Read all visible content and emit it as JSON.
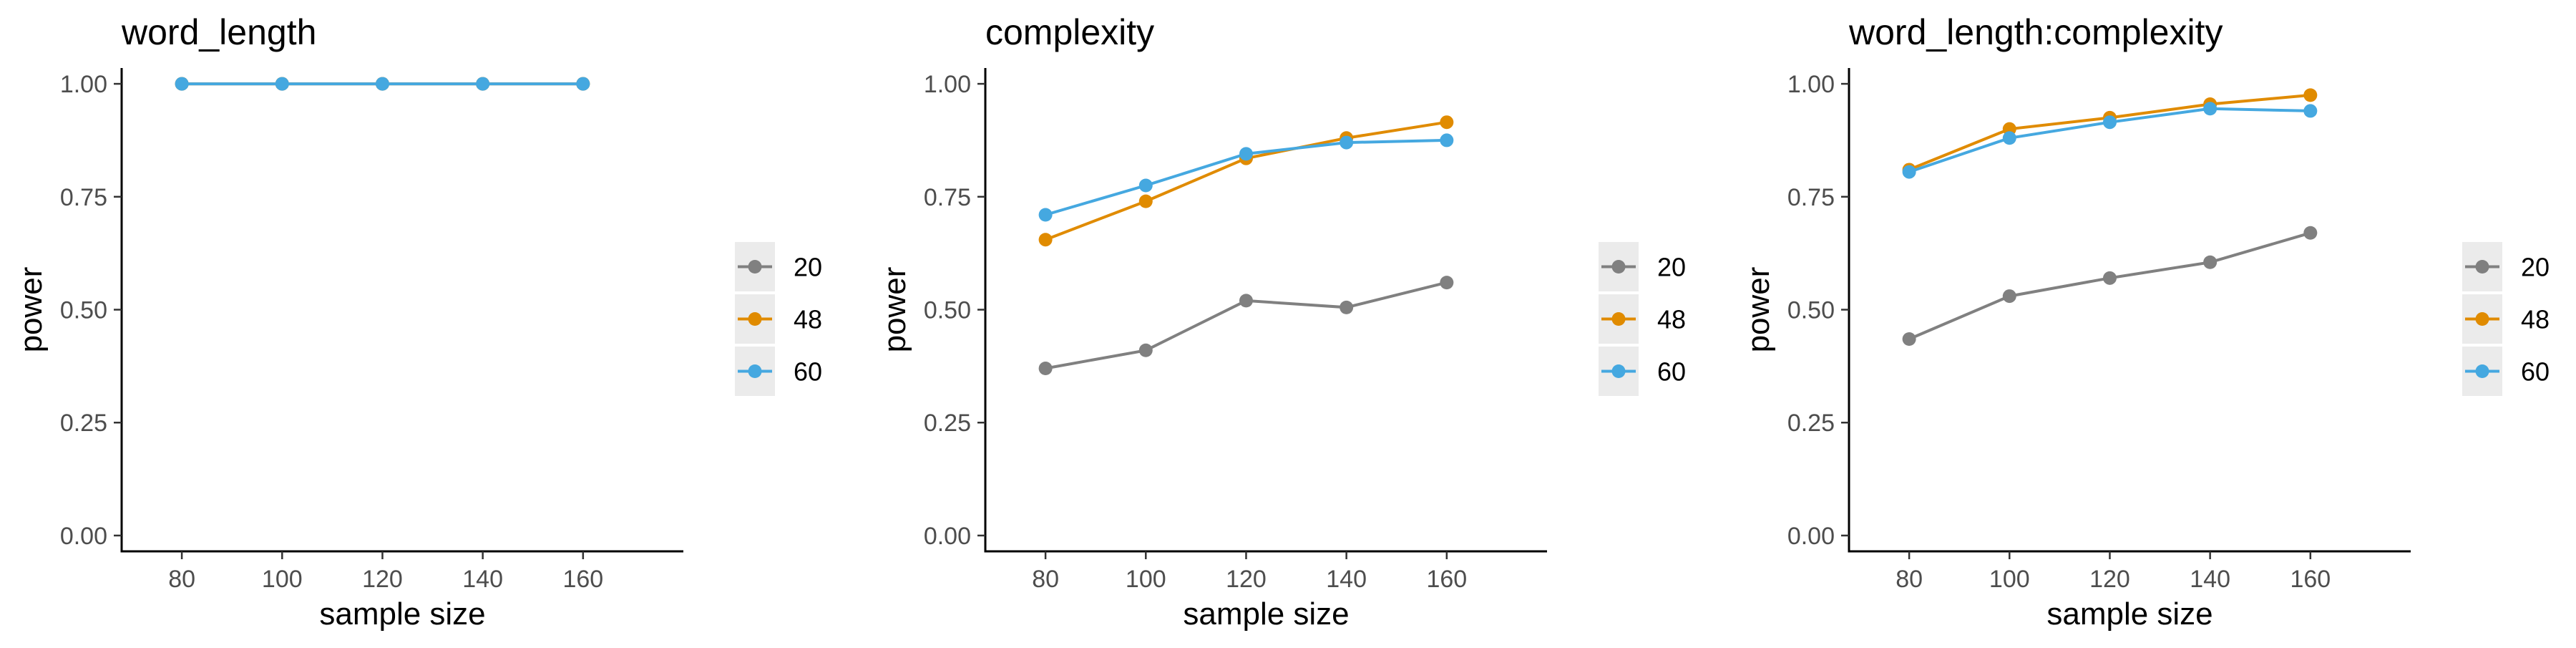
{
  "chart_data": [
    {
      "type": "line",
      "title": "word_length",
      "xlabel": "sample size",
      "ylabel": "power",
      "x": [
        80,
        100,
        120,
        140,
        160
      ],
      "xlim": [
        68,
        180
      ],
      "ylim": [
        -0.035,
        1.035
      ],
      "xticks": [
        80,
        100,
        120,
        140,
        160
      ],
      "yticks": [
        "0.00",
        "0.25",
        "0.50",
        "0.75",
        "1.00"
      ],
      "grid": false,
      "legend": {
        "position": "right",
        "entries": [
          "20",
          "48",
          "60"
        ]
      },
      "series": [
        {
          "name": "20",
          "color": "#808080",
          "values": [
            1.0,
            1.0,
            1.0,
            1.0,
            1.0
          ]
        },
        {
          "name": "48",
          "color": "#e08b00",
          "values": [
            1.0,
            1.0,
            1.0,
            1.0,
            1.0
          ]
        },
        {
          "name": "60",
          "color": "#45a8e0",
          "values": [
            1.0,
            1.0,
            1.0,
            1.0,
            1.0
          ]
        }
      ]
    },
    {
      "type": "line",
      "title": "complexity",
      "xlabel": "sample size",
      "ylabel": "power",
      "x": [
        80,
        100,
        120,
        140,
        160
      ],
      "xlim": [
        68,
        180
      ],
      "ylim": [
        -0.035,
        1.035
      ],
      "xticks": [
        80,
        100,
        120,
        140,
        160
      ],
      "yticks": [
        "0.00",
        "0.25",
        "0.50",
        "0.75",
        "1.00"
      ],
      "grid": false,
      "legend": {
        "position": "right",
        "entries": [
          "20",
          "48",
          "60"
        ]
      },
      "series": [
        {
          "name": "20",
          "color": "#808080",
          "values": [
            0.37,
            0.41,
            0.52,
            0.505,
            0.56
          ]
        },
        {
          "name": "48",
          "color": "#e08b00",
          "values": [
            0.655,
            0.74,
            0.835,
            0.88,
            0.915
          ]
        },
        {
          "name": "60",
          "color": "#45a8e0",
          "values": [
            0.71,
            0.775,
            0.845,
            0.87,
            0.875
          ]
        }
      ]
    },
    {
      "type": "line",
      "title": "word_length:complexity",
      "xlabel": "sample size",
      "ylabel": "power",
      "x": [
        80,
        100,
        120,
        140,
        160
      ],
      "xlim": [
        68,
        180
      ],
      "ylim": [
        -0.035,
        1.035
      ],
      "xticks": [
        80,
        100,
        120,
        140,
        160
      ],
      "yticks": [
        "0.00",
        "0.25",
        "0.50",
        "0.75",
        "1.00"
      ],
      "grid": false,
      "legend": {
        "position": "right",
        "entries": [
          "20",
          "48",
          "60"
        ]
      },
      "series": [
        {
          "name": "20",
          "color": "#808080",
          "values": [
            0.435,
            0.53,
            0.57,
            0.605,
            0.67
          ]
        },
        {
          "name": "48",
          "color": "#e08b00",
          "values": [
            0.81,
            0.9,
            0.925,
            0.955,
            0.975
          ]
        },
        {
          "name": "60",
          "color": "#45a8e0",
          "values": [
            0.805,
            0.88,
            0.915,
            0.945,
            0.94
          ]
        }
      ]
    }
  ]
}
